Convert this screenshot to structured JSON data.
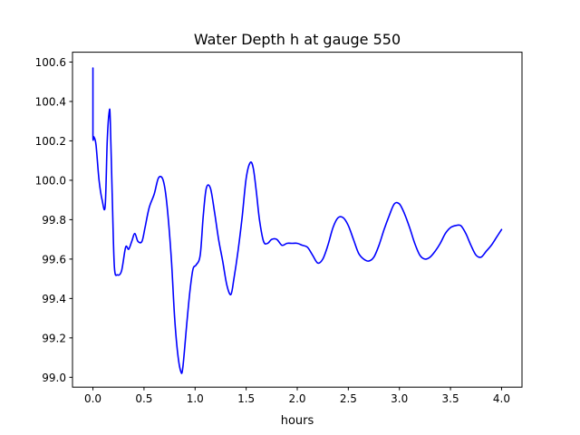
{
  "chart_data": {
    "type": "line",
    "title": "Water Depth h at gauge 550",
    "xlabel": "hours",
    "ylabel": "",
    "xlim": [
      -0.2,
      4.2
    ],
    "ylim": [
      98.95,
      100.65
    ],
    "xticks": [
      0.0,
      0.5,
      1.0,
      1.5,
      2.0,
      2.5,
      3.0,
      3.5,
      4.0
    ],
    "xtick_labels": [
      "0.0",
      "0.5",
      "1.0",
      "1.5",
      "2.0",
      "2.5",
      "3.0",
      "3.5",
      "4.0"
    ],
    "yticks": [
      99.0,
      99.2,
      99.4,
      99.6,
      99.8,
      100.0,
      100.2,
      100.4,
      100.6
    ],
    "ytick_labels": [
      "99.0",
      "99.2",
      "99.4",
      "99.6",
      "99.8",
      "100.0",
      "100.2",
      "100.4",
      "100.6"
    ],
    "grid": false,
    "series": [
      {
        "color": "#0000ff",
        "x": [
          0.0,
          0.0,
          0.01,
          0.03,
          0.06,
          0.09,
          0.12,
          0.14,
          0.16,
          0.17,
          0.19,
          0.21,
          0.24,
          0.28,
          0.32,
          0.35,
          0.38,
          0.41,
          0.44,
          0.48,
          0.51,
          0.55,
          0.6,
          0.64,
          0.68,
          0.71,
          0.74,
          0.77,
          0.8,
          0.83,
          0.86,
          0.88,
          0.92,
          0.95,
          0.98,
          1.01,
          1.05,
          1.08,
          1.11,
          1.15,
          1.19,
          1.23,
          1.27,
          1.31,
          1.35,
          1.38,
          1.42,
          1.46,
          1.5,
          1.54,
          1.57,
          1.6,
          1.63,
          1.67,
          1.71,
          1.75,
          1.8,
          1.85,
          1.9,
          1.95,
          2.0,
          2.05,
          2.1,
          2.15,
          2.2,
          2.25,
          2.3,
          2.35,
          2.4,
          2.45,
          2.5,
          2.55,
          2.6,
          2.65,
          2.7,
          2.75,
          2.8,
          2.85,
          2.9,
          2.95,
          3.0,
          3.05,
          3.1,
          3.15,
          3.2,
          3.25,
          3.3,
          3.35,
          3.4,
          3.45,
          3.5,
          3.55,
          3.6,
          3.65,
          3.7,
          3.75,
          3.8,
          3.85,
          3.9,
          3.95,
          4.0
        ],
        "y": [
          100.57,
          100.23,
          100.22,
          100.18,
          100.0,
          99.9,
          99.87,
          100.2,
          100.35,
          100.3,
          99.9,
          99.56,
          99.52,
          99.54,
          99.66,
          99.65,
          99.69,
          99.73,
          99.69,
          99.69,
          99.76,
          99.86,
          99.93,
          100.01,
          100.01,
          99.94,
          99.79,
          99.58,
          99.3,
          99.12,
          99.03,
          99.05,
          99.28,
          99.44,
          99.55,
          99.57,
          99.62,
          99.82,
          99.96,
          99.96,
          99.84,
          99.7,
          99.59,
          99.47,
          99.42,
          99.5,
          99.64,
          99.81,
          100.01,
          100.09,
          100.06,
          99.94,
          99.8,
          99.69,
          99.68,
          99.7,
          99.7,
          99.67,
          99.68,
          99.68,
          99.68,
          99.67,
          99.66,
          99.62,
          99.58,
          99.6,
          99.67,
          99.76,
          99.81,
          99.81,
          99.77,
          99.7,
          99.63,
          99.6,
          99.59,
          99.61,
          99.67,
          99.75,
          99.82,
          99.88,
          99.88,
          99.83,
          99.76,
          99.68,
          99.62,
          99.6,
          99.61,
          99.64,
          99.68,
          99.73,
          99.76,
          99.77,
          99.77,
          99.73,
          99.67,
          99.62,
          99.61,
          99.64,
          99.67,
          99.71,
          99.75
        ]
      }
    ]
  }
}
